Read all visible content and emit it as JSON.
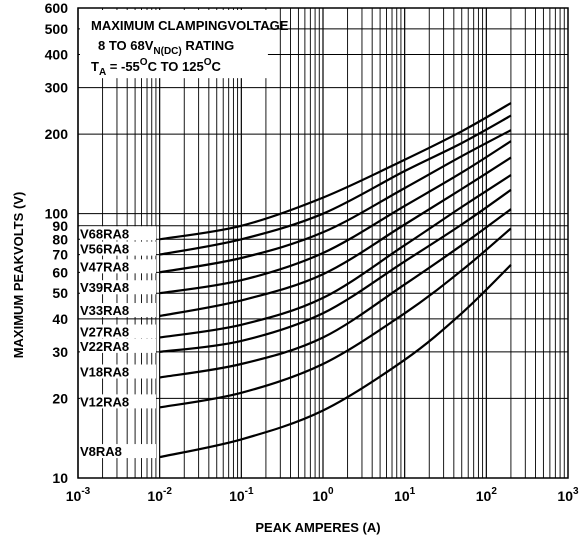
{
  "chart_data": {
    "type": "line",
    "xlabel": "PEAK AMPERES (A)",
    "ylabel": "MAXIMUM PEAKVOLTS (V)",
    "x_scale": "log",
    "y_scale": "log",
    "xlim": [
      0.001,
      1000
    ],
    "ylim": [
      10,
      600
    ],
    "grid": true,
    "x_ticks": [
      {
        "value": 0.001,
        "base": "10",
        "exp": "-3"
      },
      {
        "value": 0.01,
        "base": "10",
        "exp": "-2"
      },
      {
        "value": 0.1,
        "base": "10",
        "exp": "-1"
      },
      {
        "value": 1,
        "base": "10",
        "exp": "0"
      },
      {
        "value": 10,
        "base": "10",
        "exp": "1"
      },
      {
        "value": 100,
        "base": "10",
        "exp": "2"
      },
      {
        "value": 1000,
        "base": "10",
        "exp": "3"
      }
    ],
    "y_ticks": [
      {
        "value": 10,
        "label": "10"
      },
      {
        "value": 20,
        "label": "20"
      },
      {
        "value": 30,
        "label": "30"
      },
      {
        "value": 40,
        "label": "40"
      },
      {
        "value": 50,
        "label": "50"
      },
      {
        "value": 60,
        "label": "60"
      },
      {
        "value": 70,
        "label": "70"
      },
      {
        "value": 80,
        "label": "80"
      },
      {
        "value": 90,
        "label": "90"
      },
      {
        "value": 100,
        "label": "100"
      },
      {
        "value": 200,
        "label": "200"
      },
      {
        "value": 300,
        "label": "300"
      },
      {
        "value": 400,
        "label": "400"
      },
      {
        "value": 500,
        "label": "500"
      },
      {
        "value": 600,
        "label": "600"
      }
    ],
    "annotation": {
      "line1": "MAXIMUM CLAMPINGVOLTAGE",
      "line2_main": "8 TO 68V",
      "line2_sub": "N(DC)",
      "line2_end": " RATING",
      "line3_t": "T",
      "line3_t_sub": "A",
      "line3_a": " = -55",
      "line3_deg1": "O",
      "line3_b": "C TO 125",
      "line3_deg2": "O",
      "line3_c": "C"
    },
    "series": [
      {
        "name": "V68RA8",
        "x": [
          0.01,
          0.1,
          1,
          10,
          50,
          200
        ],
        "y": [
          80,
          90,
          115,
          160,
          205,
          262
        ]
      },
      {
        "name": "V56RA8",
        "x": [
          0.01,
          0.1,
          1,
          10,
          50,
          200
        ],
        "y": [
          70,
          80,
          100,
          145,
          185,
          235
        ]
      },
      {
        "name": "V47RA8",
        "x": [
          0.01,
          0.1,
          1,
          10,
          50,
          200
        ],
        "y": [
          60,
          68,
          85,
          125,
          165,
          207
        ]
      },
      {
        "name": "V39RA8",
        "x": [
          0.01,
          0.1,
          1,
          10,
          50,
          200
        ],
        "y": [
          50,
          56,
          71,
          107,
          143,
          188
        ]
      },
      {
        "name": "V33RA8",
        "x": [
          0.01,
          0.1,
          1,
          10,
          50,
          200
        ],
        "y": [
          41,
          47,
          59,
          91,
          124,
          163
        ]
      },
      {
        "name": "V27RA8",
        "x": [
          0.01,
          0.1,
          1,
          10,
          50,
          200
        ],
        "y": [
          34,
          38,
          48,
          76,
          106,
          140
        ]
      },
      {
        "name": "V22RA8",
        "x": [
          0.01,
          0.1,
          1,
          10,
          50,
          200
        ],
        "y": [
          30,
          33,
          42,
          66,
          91,
          123
        ]
      },
      {
        "name": "V18RA8",
        "x": [
          0.01,
          0.1,
          1,
          10,
          50,
          200
        ],
        "y": [
          24,
          27,
          34,
          54,
          76,
          104
        ]
      },
      {
        "name": "V12RA8",
        "x": [
          0.01,
          0.1,
          1,
          10,
          50,
          200
        ],
        "y": [
          18.5,
          21,
          27,
          42,
          61,
          88
        ]
      },
      {
        "name": "V8RA8",
        "x": [
          0.01,
          0.1,
          1,
          10,
          50,
          200
        ],
        "y": [
          12,
          14,
          18,
          28,
          42,
          64
        ]
      }
    ]
  }
}
